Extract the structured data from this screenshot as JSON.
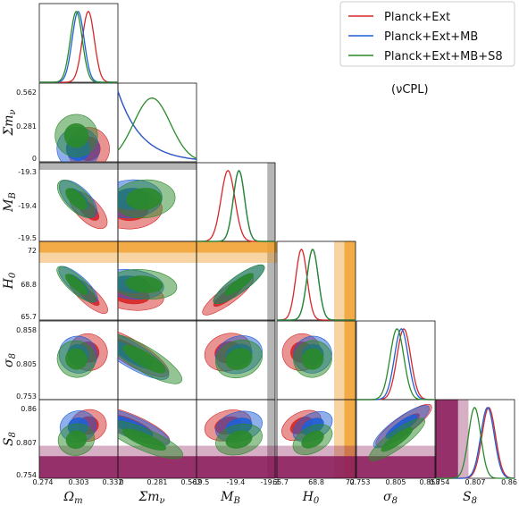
{
  "chart_data": {
    "type": "triangle-corner-plot",
    "annotation": "(νCPL)",
    "colors": {
      "planck_ext": "#d62728",
      "planck_ext_mb": "#1f5fd6",
      "planck_ext_mb_s8": "#2a8a2a",
      "band_orange": "#f0a030",
      "band_gray": "#a8a8a8",
      "band_purple": "#8b1a5a"
    },
    "legend": [
      {
        "key": "planck_ext",
        "label": "Planck+Ext"
      },
      {
        "key": "planck_ext_mb",
        "label": "Planck+Ext+MB"
      },
      {
        "key": "planck_ext_mb_s8",
        "label": "Planck+Ext+MB+S8"
      }
    ],
    "parameters": [
      {
        "key": "Om",
        "label": "Ω_m",
        "ticks": [
          "0.274",
          "0.303",
          "0.332"
        ],
        "range": [
          0.26,
          0.345
        ]
      },
      {
        "key": "mnu",
        "label": "Σm_ν",
        "ticks": [
          "0",
          "0.281",
          "0.562"
        ],
        "range": [
          0,
          0.6
        ]
      },
      {
        "key": "MB",
        "label": "M_B",
        "ticks": [
          "-19.5",
          "-19.4",
          "-19.3"
        ],
        "range": [
          -19.53,
          -19.28
        ]
      },
      {
        "key": "H0",
        "label": "H_0",
        "ticks": [
          "65.7",
          "68.8",
          "72"
        ],
        "range": [
          65.3,
          73.0
        ]
      },
      {
        "key": "s8",
        "label": "σ_8",
        "ticks": [
          "0.753",
          "0.805",
          "0.858"
        ],
        "range": [
          0.742,
          0.868
        ]
      },
      {
        "key": "S8",
        "label": "S_8",
        "ticks": [
          "0.754",
          "0.807",
          "0.86"
        ],
        "range": [
          0.742,
          0.87
        ]
      }
    ],
    "x_tick_labels_row": [
      "0.274",
      "0.303",
      "0.332",
      "0",
      "0.281",
      "0.562",
      "-19.5",
      "-19.4",
      "-19.3",
      "65.7",
      "68.8",
      "72",
      "0.753",
      "0.805",
      "0.858",
      "0.754",
      "0.807",
      "0.86"
    ],
    "x_axis_labels": [
      "Ω_m",
      "Σm_ν",
      "M_B",
      "H_0",
      "σ_8",
      "S_8"
    ],
    "y_axis_labels": [
      "Σm_ν",
      "M_B",
      "H_0",
      "σ_8",
      "S_8"
    ],
    "marginals": {
      "Om": [
        {
          "series": "planck_ext",
          "mean": 0.313,
          "sd": 0.0065
        },
        {
          "series": "planck_ext_mb",
          "mean": 0.302,
          "sd": 0.0065
        },
        {
          "series": "planck_ext_mb_s8",
          "mean": 0.3,
          "sd": 0.0065
        }
      ],
      "mnu": {
        "type": "decay_and_bump",
        "planck_ext_scale": 0.18,
        "planck_ext_mb_scale": 0.18,
        "planck_ext_mb_s8_peak": 0.26,
        "planck_ext_mb_s8_sd": 0.14
      },
      "MB": [
        {
          "series": "planck_ext",
          "mean": -19.43,
          "sd": 0.022
        },
        {
          "series": "planck_ext_mb",
          "mean": -19.395,
          "sd": 0.018
        },
        {
          "series": "planck_ext_mb_s8",
          "mean": -19.395,
          "sd": 0.018
        }
      ],
      "H0": [
        {
          "series": "planck_ext",
          "mean": 67.7,
          "sd": 0.55
        },
        {
          "series": "planck_ext_mb",
          "mean": 68.8,
          "sd": 0.55
        },
        {
          "series": "planck_ext_mb_s8",
          "mean": 68.8,
          "sd": 0.55
        }
      ],
      "s8": [
        {
          "series": "planck_ext",
          "mean": 0.818,
          "sd": 0.011
        },
        {
          "series": "planck_ext_mb",
          "mean": 0.814,
          "sd": 0.011
        },
        {
          "series": "planck_ext_mb_s8",
          "mean": 0.807,
          "sd": 0.011
        }
      ],
      "S8": [
        {
          "series": "planck_ext",
          "mean": 0.828,
          "sd": 0.011
        },
        {
          "series": "planck_ext_mb",
          "mean": 0.826,
          "sd": 0.011
        },
        {
          "series": "planck_ext_mb_s8",
          "mean": 0.805,
          "sd": 0.01
        }
      ]
    },
    "bands": {
      "MB_gray": {
        "param": "MB",
        "lo": -19.305,
        "hi": -19.28
      },
      "H0_orange_outer": {
        "param": "H0",
        "lo": 70.9,
        "hi": 73.0
      },
      "H0_orange_inner": {
        "param": "H0",
        "lo": 71.9,
        "hi": 73.0
      },
      "S8_purple_outer": {
        "param": "S8",
        "lo": 0.742,
        "hi": 0.795
      },
      "S8_purple_inner": {
        "param": "S8",
        "lo": 0.742,
        "hi": 0.778
      }
    }
  }
}
